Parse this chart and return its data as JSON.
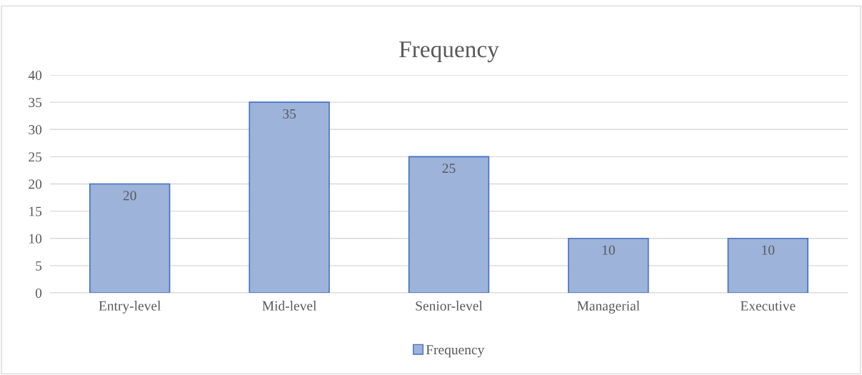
{
  "chart_data": {
    "type": "bar",
    "title": "Frequency",
    "categories": [
      "Entry-level",
      "Mid-level",
      "Senior-level",
      "Managerial",
      "Executive"
    ],
    "series": [
      {
        "name": "Frequency",
        "color": "#9db3da",
        "values": [
          20,
          35,
          25,
          10,
          10
        ]
      }
    ],
    "ylim": [
      0,
      40
    ],
    "yticks": [
      0,
      5,
      10,
      15,
      20,
      25,
      30,
      35,
      40
    ],
    "grid": "y",
    "legend": "bottom",
    "data_labels": true
  }
}
